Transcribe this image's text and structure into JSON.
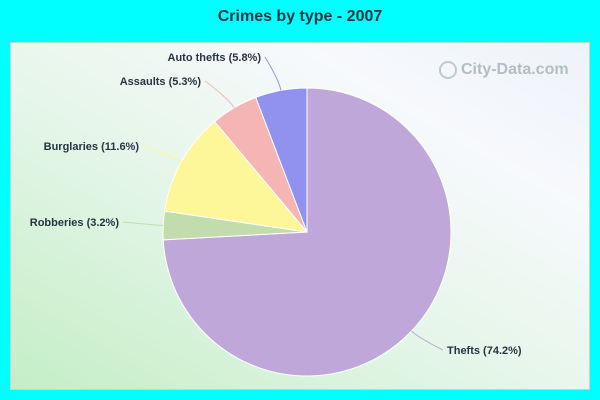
{
  "chart_data": {
    "type": "pie",
    "title": "Crimes by type - 2007",
    "slices": [
      {
        "label": "Thefts (74.2%)",
        "value": 74.2,
        "color": "#bfa8d9"
      },
      {
        "label": "Robberies (3.2%)",
        "value": 3.2,
        "color": "#c3dcae"
      },
      {
        "label": "Burglaries (11.6%)",
        "value": 11.6,
        "color": "#fdf799"
      },
      {
        "label": "Assaults (5.3%)",
        "value": 5.3,
        "color": "#f5b5b5"
      },
      {
        "label": "Auto thefts (5.8%)",
        "value": 5.8,
        "color": "#9191ef"
      }
    ],
    "legend": "none"
  },
  "watermark": "City-Data.com",
  "colors": {
    "background": "#00ffff",
    "stroke": "#ffffff"
  }
}
